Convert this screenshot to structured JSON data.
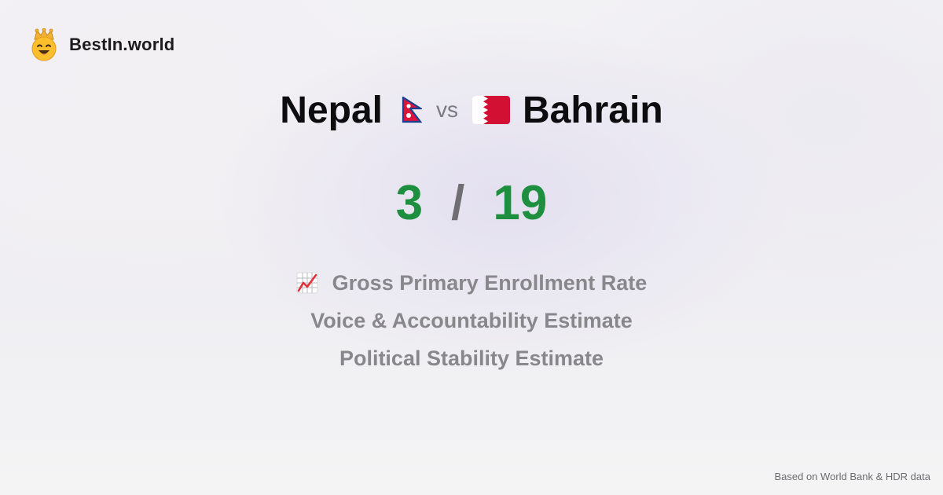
{
  "brand": {
    "name": "BestIn.world",
    "logo_icon": "smiling-crown-face-icon"
  },
  "comparison": {
    "left_country": "Nepal",
    "left_flag_icon": "nepal-flag-icon",
    "vs_label": "vs",
    "right_country": "Bahrain",
    "right_flag_icon": "bahrain-flag-icon"
  },
  "scores": {
    "left": "3",
    "separator": "/",
    "right": "19",
    "color": "#1d8f3e"
  },
  "metrics": [
    {
      "label": "Gross Primary Enrollment Rate",
      "icon": "chart-increasing-icon"
    },
    {
      "label": "Voice & Accountability Estimate"
    },
    {
      "label": "Political Stability Estimate"
    }
  ],
  "footer": {
    "source_note": "Based on World Bank & HDR data"
  }
}
